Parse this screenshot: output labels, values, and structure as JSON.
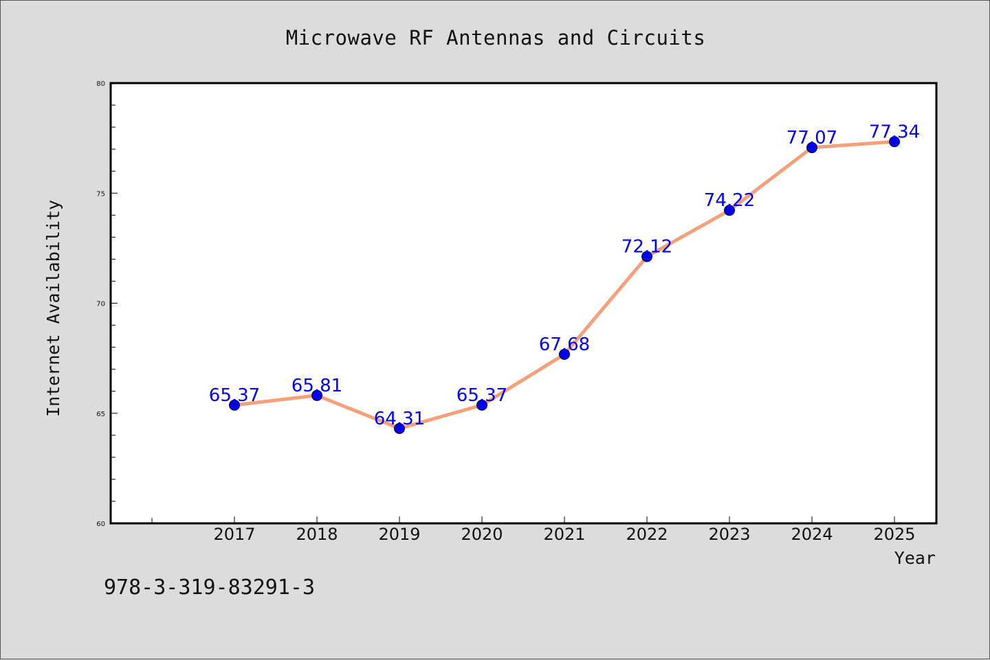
{
  "chart_data": {
    "type": "line",
    "title": "Microwave RF Antennas and Circuits",
    "xlabel": "Year",
    "ylabel": "Internet Availability",
    "x": [
      "2017",
      "2018",
      "2019",
      "2020",
      "2021",
      "2022",
      "2023",
      "2024",
      "2025"
    ],
    "values": [
      65.37,
      65.81,
      64.31,
      65.37,
      67.68,
      72.12,
      74.22,
      77.07,
      77.34
    ],
    "data_labels": [
      "65.37",
      "65.81",
      "64.31",
      "65.37",
      "67.68",
      "72.12",
      "74.22",
      "77.07",
      "77.34"
    ],
    "ylim": [
      60,
      80
    ],
    "yticks": [
      "60",
      "65",
      "70",
      "75",
      "80"
    ],
    "grid": false,
    "legend": "none",
    "colors": {
      "line": "#f4a07a",
      "marker": "#0000ee",
      "label": "#0000ee",
      "plot_bg": "#ffffff",
      "page_bg": "#dcdcdc"
    }
  },
  "footer": {
    "isbn": "978-3-319-83291-3"
  }
}
